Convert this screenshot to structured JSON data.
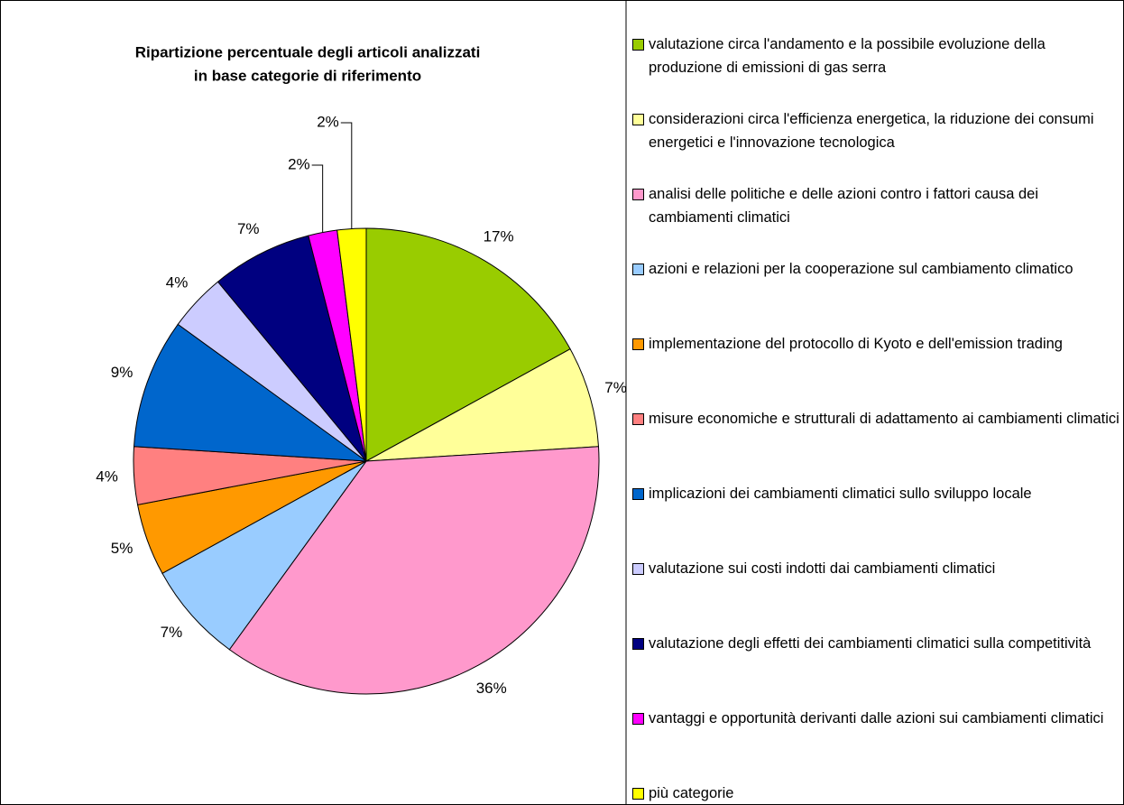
{
  "chart_data": {
    "type": "pie",
    "title": [
      "Ripartizione percentuale degli articoli analizzati",
      "in base categorie di riferimento"
    ],
    "categories": [
      "valutazione circa l'andamento e la possibile evoluzione della produzione di emissioni di gas serra",
      "considerazioni circa l'efficienza energetica, la riduzione dei consumi energetici e l'innovazione tecnologica",
      "analisi delle politiche e delle azioni contro i fattori causa dei cambiamenti climatici",
      "azioni e relazioni per la cooperazione sul cambiamento climatico",
      "implementazione del protocollo di Kyoto e dell'emission trading",
      "misure economiche e strutturali di adattamento ai cambiamenti climatici",
      "implicazioni dei cambiamenti climatici sullo sviluppo locale",
      "valutazione sui costi indotti dai cambiamenti climatici",
      "valutazione degli effetti dei cambiamenti climatici sulla competitività",
      "vantaggi e opportunità derivanti dalle azioni sui cambiamenti climatici",
      "più categorie"
    ],
    "values": [
      17,
      7,
      36,
      7,
      5,
      4,
      9,
      4,
      7,
      2,
      2
    ],
    "value_labels": [
      "17%",
      "7%",
      "36%",
      "7%",
      "5%",
      "4%",
      "9%",
      "4%",
      "7%",
      "2%",
      "2%"
    ],
    "colors": [
      "#99cc00",
      "#ffff99",
      "#ff99cc",
      "#99ccff",
      "#ff9900",
      "#ff8080",
      "#0066cc",
      "#ccccff",
      "#000080",
      "#ff00ff",
      "#ffff00"
    ],
    "legend": "right"
  }
}
